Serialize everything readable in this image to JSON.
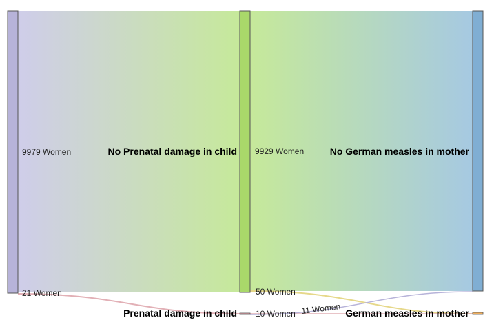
{
  "nodes": [
    {
      "id": "women_total",
      "label": ""
    },
    {
      "id": "no_prenatal",
      "label": "No Prenatal damage in child"
    },
    {
      "id": "prenatal",
      "label": "Prenatal damage in child"
    },
    {
      "id": "no_measles",
      "label": "No German measles in mother"
    },
    {
      "id": "measles",
      "label": "German measles in mother"
    }
  ],
  "links": [
    {
      "source": "women_total",
      "target": "no_prenatal",
      "value": 9979,
      "label": "9979 Women"
    },
    {
      "source": "women_total",
      "target": "prenatal",
      "value": 21,
      "label": "21 Women"
    },
    {
      "source": "no_prenatal",
      "target": "no_measles",
      "value": 9929,
      "label": "9929 Women"
    },
    {
      "source": "no_prenatal",
      "target": "measles",
      "value": 50,
      "label": "50 Women"
    },
    {
      "source": "prenatal",
      "target": "measles",
      "value": 10,
      "label": "10 Women"
    },
    {
      "source": "prenatal",
      "target": "no_measles",
      "value": 11,
      "label": "11 Women"
    }
  ],
  "colors": {
    "women_total": "#b7b3d9",
    "no_prenatal": "#a9d86a",
    "prenatal": "#e8a2a8",
    "no_measles": "#80aed3",
    "measles": "#f0b060",
    "flow_women_start": "#cfcdea",
    "flow_mid": "#c6e99a",
    "flow_end": "#a6c9e2",
    "flow_prenatal": "#e2b0b6",
    "flow_measles": "#e6d88a"
  }
}
